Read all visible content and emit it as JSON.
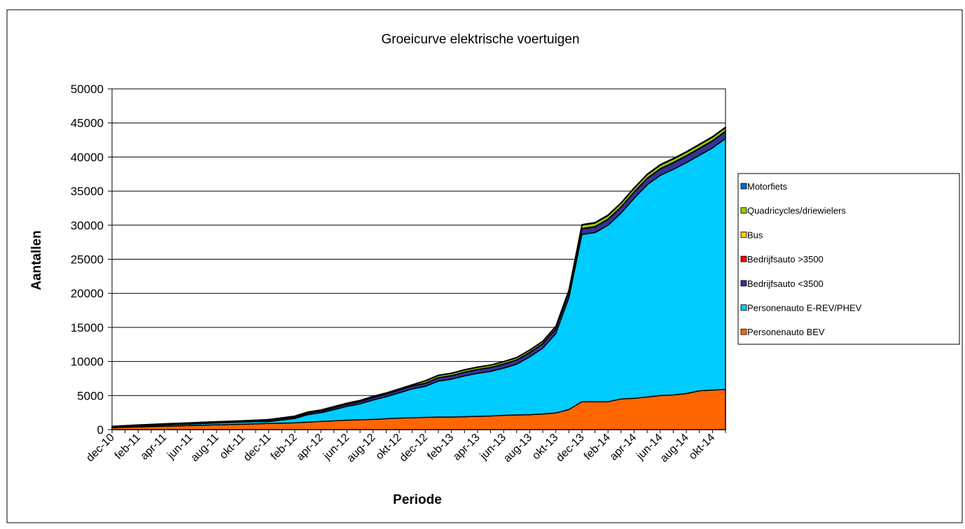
{
  "chart_data": {
    "type": "stacked_area",
    "title": "Groeicurve elektrische voertuigen",
    "x_label": "Periode",
    "y_label": "Aantallen",
    "categories": [
      "dec-10",
      null,
      "feb-11",
      null,
      "apr-11",
      null,
      "jun-11",
      null,
      "aug-11",
      null,
      "okt-11",
      null,
      "dec-11",
      null,
      "feb-12",
      null,
      "apr-12",
      null,
      "jun-12",
      null,
      "aug-12",
      null,
      "okt-12",
      null,
      "dec-12",
      null,
      "feb-13",
      null,
      "apr-13",
      null,
      "jun-13",
      null,
      "aug-13",
      null,
      "okt-13",
      null,
      "dec-13",
      null,
      "feb-14",
      null,
      "apr-14",
      null,
      "jun-14",
      null,
      "aug-14",
      null,
      "okt-14",
      null
    ],
    "series": [
      {
        "name": "Personenauto BEV",
        "color": "#ff6600",
        "values": [
          300,
          350,
          400,
          450,
          500,
          550,
          600,
          650,
          700,
          750,
          800,
          850,
          900,
          950,
          1000,
          1100,
          1200,
          1300,
          1400,
          1450,
          1500,
          1600,
          1700,
          1750,
          1800,
          1850,
          1850,
          1900,
          1950,
          2000,
          2100,
          2150,
          2200,
          2300,
          2450,
          2950,
          4100,
          4100,
          4100,
          4500,
          4600,
          4800,
          5000,
          5100,
          5300,
          5700,
          5800,
          5900
        ]
      },
      {
        "name": "Personenauto E-REV/PHEV",
        "color": "#00ccff",
        "values": [
          30,
          75,
          120,
          145,
          180,
          205,
          220,
          245,
          270,
          285,
          300,
          320,
          280,
          460,
          640,
          1100,
          1270,
          1640,
          2010,
          2330,
          2850,
          3220,
          3700,
          4230,
          4550,
          5270,
          5550,
          5980,
          6310,
          6540,
          6920,
          7450,
          8480,
          9650,
          11650,
          16400,
          24530,
          24810,
          25890,
          27270,
          29350,
          31130,
          32310,
          33090,
          33870,
          34550,
          35530,
          36810
        ]
      },
      {
        "name": "Bedrijfsauto <3500",
        "color": "#333399",
        "values": [
          50,
          55,
          60,
          65,
          70,
          75,
          80,
          85,
          90,
          95,
          100,
          110,
          120,
          140,
          160,
          200,
          230,
          260,
          290,
          320,
          350,
          380,
          400,
          420,
          450,
          480,
          500,
          520,
          540,
          560,
          580,
          600,
          620,
          650,
          700,
          750,
          800,
          820,
          840,
          860,
          880,
          900,
          920,
          940,
          960,
          980,
          1000,
          1020
        ]
      },
      {
        "name": "Bedrijfsauto >3500",
        "color": "#ff0000",
        "values": [
          10,
          10,
          10,
          10,
          10,
          10,
          10,
          10,
          10,
          10,
          10,
          10,
          10,
          10,
          10,
          10,
          10,
          10,
          10,
          10,
          10,
          10,
          10,
          10,
          20,
          20,
          20,
          20,
          20,
          20,
          20,
          20,
          20,
          20,
          20,
          20,
          30,
          30,
          30,
          30,
          30,
          30,
          30,
          30,
          30,
          30,
          30,
          30
        ]
      },
      {
        "name": "Bus",
        "color": "#ffcc00",
        "values": [
          10,
          10,
          10,
          10,
          10,
          10,
          10,
          10,
          10,
          10,
          10,
          10,
          10,
          10,
          10,
          10,
          10,
          10,
          10,
          10,
          10,
          10,
          10,
          10,
          20,
          20,
          20,
          20,
          20,
          20,
          20,
          20,
          20,
          20,
          20,
          20,
          40,
          40,
          40,
          40,
          40,
          40,
          40,
          40,
          40,
          40,
          40,
          40
        ]
      },
      {
        "name": "Quadricycles/driewielers",
        "color": "#99cc00",
        "values": [
          80,
          80,
          80,
          80,
          80,
          80,
          80,
          80,
          80,
          80,
          80,
          80,
          150,
          150,
          150,
          150,
          150,
          150,
          150,
          150,
          150,
          150,
          150,
          150,
          300,
          300,
          300,
          300,
          300,
          300,
          300,
          300,
          300,
          300,
          300,
          300,
          500,
          500,
          500,
          500,
          500,
          500,
          500,
          500,
          500,
          500,
          500,
          500
        ]
      },
      {
        "name": "Motorfiets",
        "color": "#0066cc",
        "values": [
          20,
          20,
          20,
          20,
          20,
          20,
          20,
          20,
          20,
          20,
          20,
          20,
          30,
          30,
          30,
          30,
          30,
          30,
          30,
          30,
          30,
          30,
          30,
          30,
          60,
          60,
          60,
          60,
          60,
          60,
          60,
          60,
          60,
          60,
          60,
          60,
          100,
          100,
          100,
          100,
          100,
          100,
          100,
          100,
          100,
          100,
          100,
          100
        ]
      }
    ],
    "ylim": [
      0,
      50000
    ],
    "yticks": [
      0,
      5000,
      10000,
      15000,
      20000,
      25000,
      30000,
      35000,
      40000,
      45000,
      50000
    ],
    "grid": true,
    "legend": "right"
  }
}
